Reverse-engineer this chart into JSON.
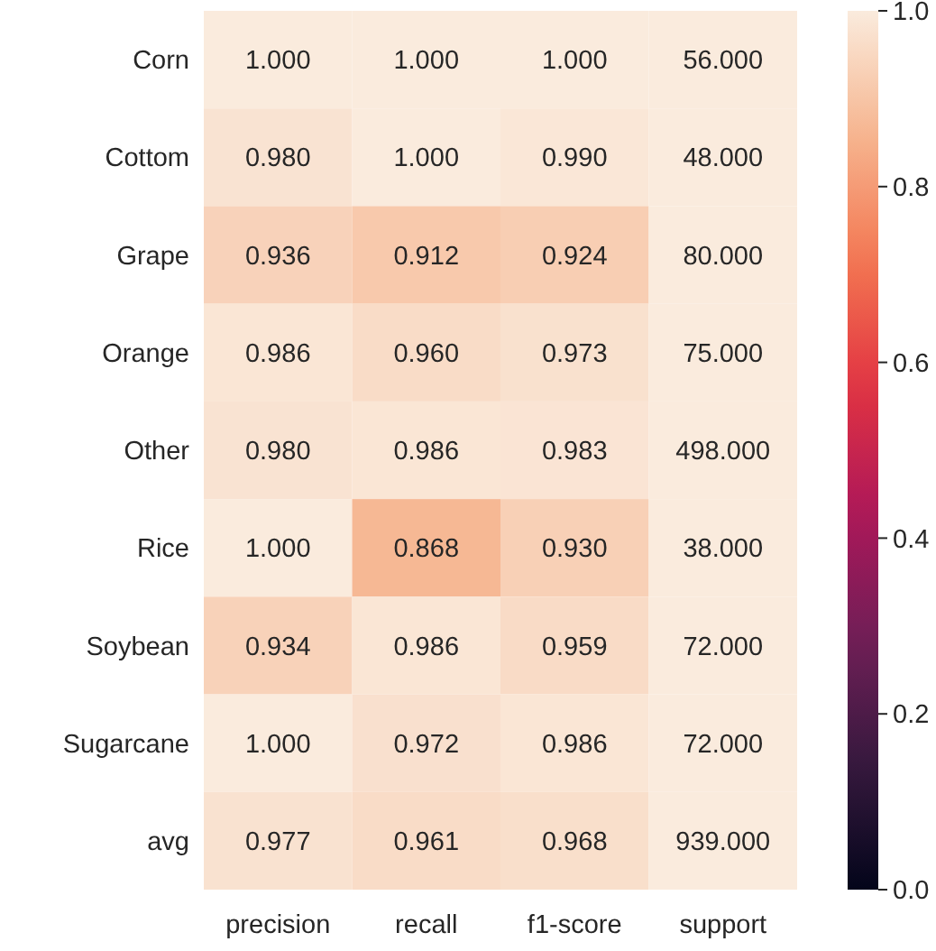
{
  "chart_data": {
    "type": "heatmap",
    "categories": [
      "precision",
      "recall",
      "f1-score",
      "support"
    ],
    "y_categories": [
      "Corn",
      "Cottom",
      "Grape",
      "Orange",
      "Other",
      "Rice",
      "Soybean",
      "Sugarcane",
      "avg"
    ],
    "cells": [
      [
        1.0,
        1.0,
        1.0,
        56
      ],
      [
        0.98,
        1.0,
        0.99,
        48
      ],
      [
        0.936,
        0.912,
        0.924,
        80
      ],
      [
        0.986,
        0.96,
        0.973,
        75
      ],
      [
        0.98,
        0.986,
        0.983,
        498
      ],
      [
        1.0,
        0.868,
        0.93,
        38
      ],
      [
        0.934,
        0.986,
        0.959,
        72
      ],
      [
        1.0,
        0.972,
        0.986,
        72
      ],
      [
        0.977,
        0.961,
        0.968,
        939
      ]
    ],
    "cell_labels": [
      [
        "1.000",
        "1.000",
        "1.000",
        "56.000"
      ],
      [
        "0.980",
        "1.000",
        "0.990",
        "48.000"
      ],
      [
        "0.936",
        "0.912",
        "0.924",
        "80.000"
      ],
      [
        "0.986",
        "0.960",
        "0.973",
        "75.000"
      ],
      [
        "0.980",
        "0.986",
        "0.983",
        "498.000"
      ],
      [
        "1.000",
        "0.868",
        "0.930",
        "38.000"
      ],
      [
        "0.934",
        "0.986",
        "0.959",
        "72.000"
      ],
      [
        "1.000",
        "0.972",
        "0.986",
        "72.000"
      ],
      [
        "0.977",
        "0.961",
        "0.968",
        "939.000"
      ]
    ],
    "clim": [
      0,
      1
    ],
    "cticks": [
      {
        "value": 0,
        "label": "0.0"
      },
      {
        "value": 0.2,
        "label": "0.2"
      },
      {
        "value": 0.4,
        "label": "0.4"
      },
      {
        "value": 0.6,
        "label": "0.6"
      },
      {
        "value": 0.8,
        "label": "0.8"
      },
      {
        "value": 1,
        "label": "1.0"
      }
    ]
  }
}
